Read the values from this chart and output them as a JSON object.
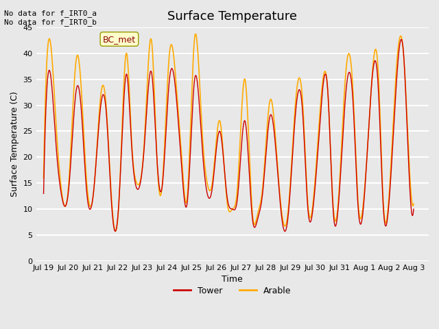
{
  "title": "Surface Temperature",
  "xlabel": "Time",
  "ylabel": "Surface Temperature (C)",
  "ylim": [
    0,
    45
  ],
  "yticks": [
    0,
    5,
    10,
    15,
    20,
    25,
    30,
    35,
    40,
    45
  ],
  "background_color": "#e8e8e8",
  "plot_bg_color": "#e8e8e8",
  "grid_color": "#ffffff",
  "annotation_text": "No data for f_IRT0_a\nNo data for f_IRT0_b",
  "legend_label1": "Tower",
  "legend_label2": "Arable",
  "legend_color1": "#cc0000",
  "legend_color2": "#ffaa00",
  "bc_met_label": "BC_met",
  "x_tick_labels": [
    "Jul 19",
    "Jul 20",
    "Jul 21",
    "Jul 22",
    "Jul 23",
    "Jul 24",
    "Jul 25",
    "Jul 26",
    "Jul 27",
    "Jul 28",
    "Jul 29",
    "Jul 30",
    "Jul 31",
    "Aug 1",
    "Aug 2",
    "Aug 3"
  ],
  "tower_x": [
    0,
    0.3,
    0.5,
    0.7,
    1.0,
    1.3,
    1.5,
    1.7,
    2.0,
    2.3,
    2.5,
    2.7,
    3.0,
    3.3,
    3.5,
    3.7,
    4.0,
    4.3,
    4.5,
    4.7,
    5.0,
    5.3,
    5.5,
    5.7,
    6.0,
    6.3,
    6.5,
    6.7,
    7.0,
    7.3,
    7.5,
    7.7,
    8.0,
    8.3,
    8.5,
    8.7,
    9.0,
    9.3,
    9.5,
    9.7,
    10.0,
    10.3,
    10.5,
    10.7,
    11.0,
    11.3,
    11.5,
    11.7,
    12.0,
    12.3,
    12.5,
    12.7,
    13.0,
    13.3,
    13.5,
    13.7,
    14.0,
    14.3,
    14.5,
    14.7
  ],
  "tower_y": [
    13,
    35,
    22,
    13,
    14,
    33,
    29,
    14,
    14,
    31,
    28,
    11,
    12,
    36,
    22,
    14,
    22,
    36,
    20,
    14,
    35,
    30,
    17,
    11,
    35,
    22,
    13,
    14,
    25,
    12,
    10,
    12,
    27,
    8,
    8,
    13,
    28,
    17,
    7,
    8,
    28,
    28,
    10,
    10,
    28,
    32,
    10,
    10,
    32,
    30,
    10,
    10,
    32,
    33,
    10,
    10,
    33,
    40,
    19,
    10
  ],
  "arable_x": [
    0,
    0.3,
    0.5,
    0.7,
    1.0,
    1.3,
    1.5,
    1.7,
    2.0,
    2.3,
    2.5,
    2.7,
    3.0,
    3.3,
    3.5,
    3.7,
    4.0,
    4.3,
    4.5,
    4.7,
    5.0,
    5.3,
    5.5,
    5.7,
    6.0,
    6.3,
    6.5,
    6.7,
    7.0,
    7.3,
    7.5,
    7.7,
    8.0,
    8.3,
    8.5,
    8.7,
    9.0,
    9.3,
    9.5,
    9.7,
    10.0,
    10.3,
    10.5,
    10.7,
    11.0,
    11.3,
    11.5,
    11.7,
    12.0,
    12.3,
    12.5,
    12.7,
    13.0,
    13.3,
    13.5,
    13.7,
    14.0,
    14.3,
    14.5,
    14.7
  ],
  "arable_y": [
    16,
    41,
    26,
    14,
    15,
    39,
    33,
    16,
    14,
    33,
    29,
    12,
    12,
    40,
    23,
    15,
    23,
    42,
    20,
    14,
    40,
    32,
    19,
    12,
    43,
    25,
    15,
    15,
    27,
    11,
    10,
    14,
    35,
    9,
    9,
    14,
    31,
    18,
    8,
    9,
    30,
    30,
    11,
    11,
    30,
    32,
    11,
    11,
    36,
    32,
    11,
    11,
    32,
    36,
    11,
    11,
    36,
    40,
    21,
    11
  ]
}
